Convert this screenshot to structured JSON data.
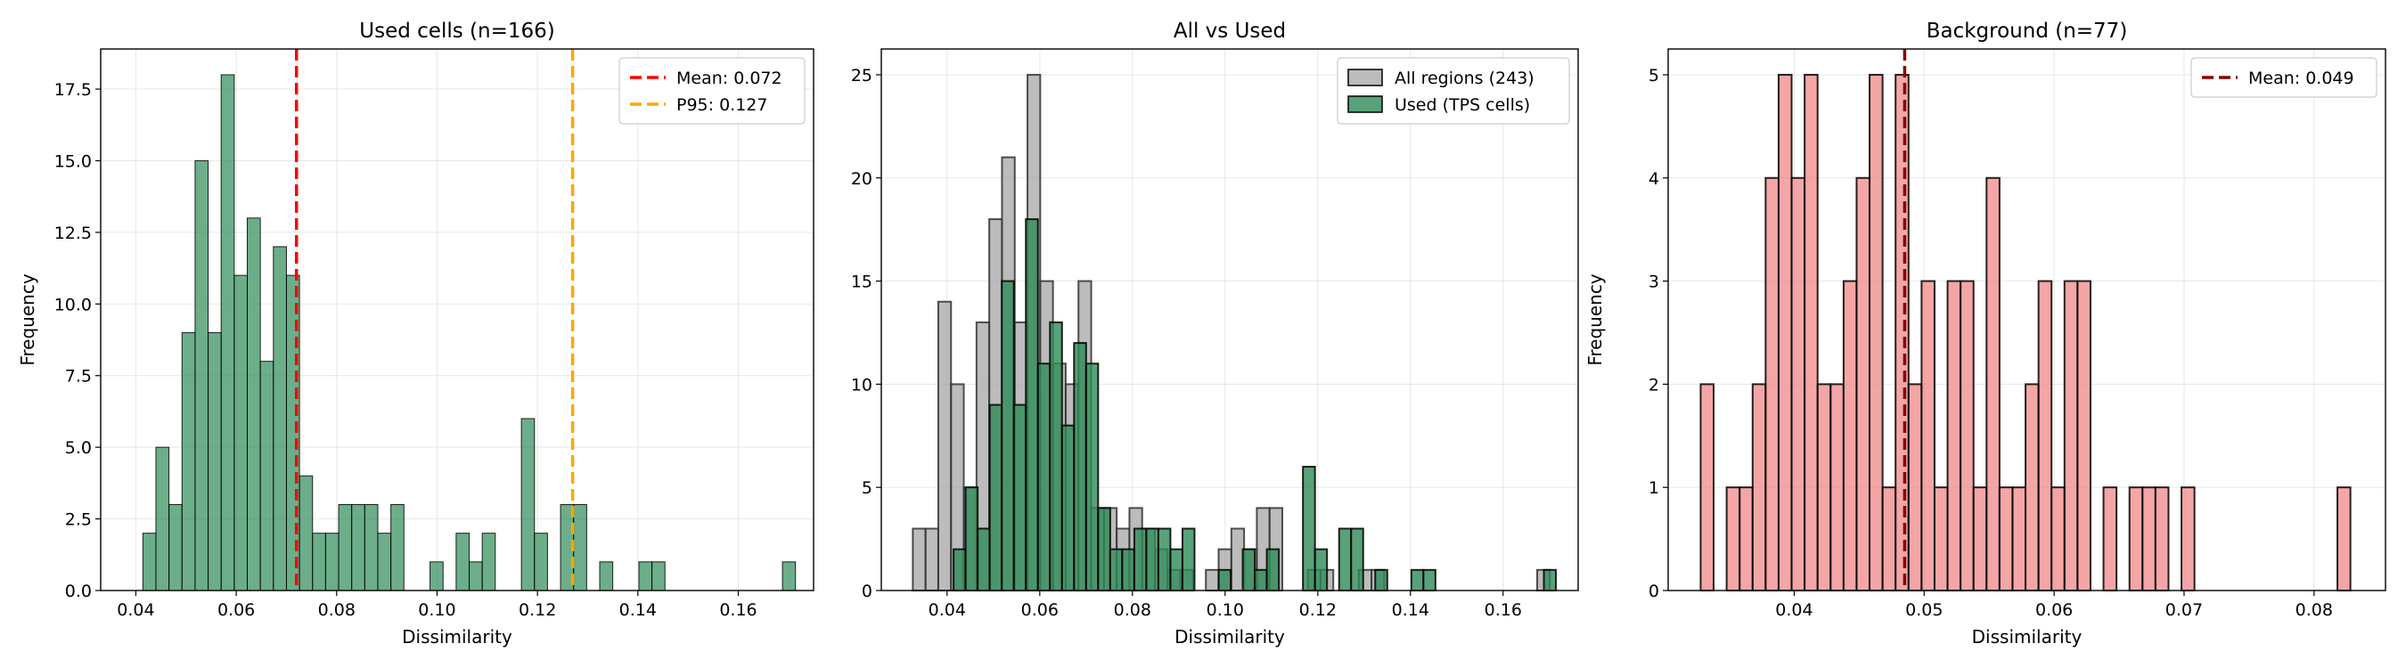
{
  "chart_data": [
    {
      "type": "histogram",
      "title": "Used cells (n=166)",
      "xlabel": "Dissimilarity",
      "ylabel": "Frequency",
      "xlim": [
        0.033,
        0.175
      ],
      "ylim": [
        0,
        18.9
      ],
      "xticks": [
        "0.04",
        "0.06",
        "0.08",
        "0.10",
        "0.12",
        "0.14",
        "0.16"
      ],
      "yticks": [
        "0.0",
        "2.5",
        "5.0",
        "7.5",
        "10.0",
        "12.5",
        "15.0",
        "17.5"
      ],
      "grid": true,
      "legend_position": "top-right",
      "series": [
        {
          "bin_start": 0.0414,
          "bin_width": 0.0026,
          "counts": [
            2,
            5,
            3,
            9,
            15,
            9,
            18,
            11,
            13,
            8,
            12,
            11,
            4,
            2,
            2,
            3,
            3,
            3,
            2,
            3,
            0,
            0,
            1,
            0,
            2,
            1,
            2,
            0,
            0,
            6,
            2,
            0,
            3,
            3,
            0,
            1,
            0,
            0,
            1,
            1,
            0,
            0,
            0,
            0,
            0,
            0,
            0,
            0,
            0,
            1
          ],
          "color": "#2e8b57",
          "opacity": 0.7,
          "edgecolor": "#000000"
        }
      ],
      "reference_lines": [
        {
          "label": "Mean: 0.072",
          "x": 0.072,
          "color": "#ff0000"
        },
        {
          "label": "P95: 0.127",
          "x": 0.127,
          "color": "#ffa500"
        }
      ]
    },
    {
      "type": "histogram",
      "title": "All vs Used",
      "xlabel": "Dissimilarity",
      "ylabel": "",
      "xlim": [
        0.0258,
        0.1762
      ],
      "ylim": [
        0,
        26.25
      ],
      "xticks": [
        "0.04",
        "0.06",
        "0.08",
        "0.10",
        "0.12",
        "0.14",
        "0.16"
      ],
      "yticks": [
        "0",
        "5",
        "10",
        "15",
        "20",
        "25"
      ],
      "grid": true,
      "legend_position": "top-right",
      "series": [
        {
          "name": "All regions (243)",
          "bin_start": 0.0326,
          "bin_width": 0.00275,
          "counts": [
            3,
            3,
            14,
            10,
            5,
            13,
            18,
            21,
            13,
            25,
            15,
            11,
            10,
            15,
            4,
            4,
            3,
            4,
            3,
            2,
            1,
            1,
            0,
            1,
            2,
            3,
            2,
            4,
            4,
            0,
            0,
            1,
            1,
            0,
            0,
            1,
            1,
            0,
            0,
            0,
            0,
            0,
            0,
            0,
            0,
            0,
            0,
            0,
            0,
            1
          ],
          "color": "#a0a0a0",
          "opacity": 0.7,
          "edgecolor": "#333333"
        },
        {
          "name": "Used (TPS cells)",
          "bin_start": 0.0414,
          "bin_width": 0.0026,
          "counts": [
            2,
            5,
            3,
            9,
            15,
            9,
            18,
            11,
            13,
            8,
            12,
            11,
            4,
            2,
            2,
            3,
            3,
            3,
            2,
            3,
            0,
            0,
            1,
            0,
            2,
            1,
            2,
            0,
            0,
            6,
            2,
            0,
            3,
            3,
            0,
            1,
            0,
            0,
            1,
            1,
            0,
            0,
            0,
            0,
            0,
            0,
            0,
            0,
            0,
            1
          ],
          "color": "#2e8b57",
          "opacity": 0.8,
          "edgecolor": "#000000"
        }
      ]
    },
    {
      "type": "histogram",
      "title": "Background (n=77)",
      "xlabel": "Dissimilarity",
      "ylabel": "Frequency",
      "xlim": [
        0.0303,
        0.0855
      ],
      "ylim": [
        0,
        5.25
      ],
      "xticks": [
        "0.04",
        "0.05",
        "0.06",
        "0.07",
        "0.08"
      ],
      "yticks": [
        "0",
        "1",
        "2",
        "3",
        "4",
        "5"
      ],
      "grid": true,
      "legend_position": "top-right",
      "series": [
        {
          "bin_start": 0.0328,
          "bin_width": 0.001,
          "counts": [
            2,
            0,
            1,
            1,
            2,
            4,
            5,
            4,
            5,
            2,
            2,
            3,
            4,
            5,
            1,
            5,
            2,
            3,
            1,
            3,
            3,
            1,
            4,
            1,
            1,
            2,
            3,
            1,
            3,
            3,
            0,
            1,
            0,
            1,
            1,
            1,
            0,
            1,
            0,
            0,
            0,
            0,
            0,
            0,
            0,
            0,
            0,
            0,
            0,
            1
          ],
          "color": "#f08080",
          "opacity": 0.7,
          "edgecolor": "#000000"
        }
      ],
      "reference_lines": [
        {
          "label": "Mean: 0.049",
          "x": 0.0485,
          "color": "#8b0000"
        }
      ]
    }
  ]
}
